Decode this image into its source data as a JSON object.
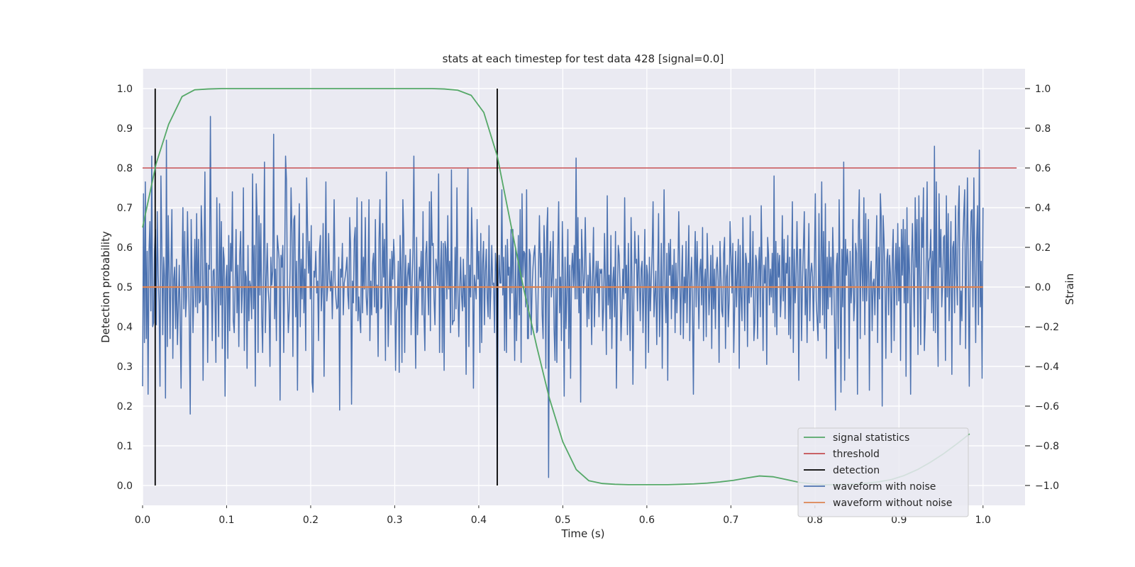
{
  "chart_data": {
    "type": "line",
    "title": "stats at each timestep for test data 428 [signal=0.0]",
    "xlabel": "Time (s)",
    "ylabel_left": "Detection probability",
    "ylabel_right": "Strain",
    "xlim": [
      0.0,
      1.05
    ],
    "ylim_left": [
      -0.05,
      1.05
    ],
    "ylim_right": [
      -1.1,
      1.1
    ],
    "x_ticks": [
      "0.0",
      "0.1",
      "0.2",
      "0.3",
      "0.4",
      "0.5",
      "0.6",
      "0.7",
      "0.8",
      "0.9",
      "1.0"
    ],
    "y_ticks_left": [
      "0.0",
      "0.1",
      "0.2",
      "0.3",
      "0.4",
      "0.5",
      "0.6",
      "0.7",
      "0.8",
      "0.9",
      "1.0"
    ],
    "y_ticks_right": [
      "−1.0",
      "−0.8",
      "−0.6",
      "−0.4",
      "−0.2",
      "0.0",
      "0.2",
      "0.4",
      "0.6",
      "0.8",
      "1.0"
    ],
    "grid": true,
    "legend_position": "lower-right",
    "legend": [
      {
        "label": "signal statistics",
        "color": "#55a868"
      },
      {
        "label": "threshold",
        "color": "#c44e52"
      },
      {
        "label": "detection",
        "color": "#000000"
      },
      {
        "label": "waveform with noise",
        "color": "#4c72b0"
      },
      {
        "label": "waveform without noise",
        "color": "#dd8452"
      }
    ],
    "signal_statistics": {
      "x": [
        0.0,
        0.016,
        0.031,
        0.047,
        0.062,
        0.078,
        0.094,
        0.109,
        0.125,
        0.141,
        0.156,
        0.172,
        0.187,
        0.203,
        0.219,
        0.234,
        0.25,
        0.266,
        0.281,
        0.297,
        0.312,
        0.328,
        0.344,
        0.359,
        0.375,
        0.391,
        0.406,
        0.422,
        0.437,
        0.453,
        0.469,
        0.484,
        0.5,
        0.516,
        0.531,
        0.547,
        0.562,
        0.578,
        0.594,
        0.609,
        0.625,
        0.641,
        0.656,
        0.672,
        0.687,
        0.703,
        0.719,
        0.734,
        0.75,
        0.766,
        0.781,
        0.797,
        0.812,
        0.828,
        0.844,
        0.859,
        0.875,
        0.891,
        0.906,
        0.922,
        0.937,
        0.953,
        0.969,
        0.984
      ],
      "values": [
        0.65,
        0.81,
        0.91,
        0.98,
        0.997,
        0.999,
        1.0,
        1.0,
        1.0,
        1.0,
        1.0,
        1.0,
        1.0,
        1.0,
        1.0,
        1.0,
        1.0,
        1.0,
        1.0,
        1.0,
        1.0,
        1.0,
        1.0,
        0.999,
        0.996,
        0.983,
        0.94,
        0.83,
        0.67,
        0.5,
        0.35,
        0.22,
        0.11,
        0.04,
        0.012,
        0.005,
        0.003,
        0.002,
        0.002,
        0.002,
        0.002,
        0.003,
        0.004,
        0.006,
        0.009,
        0.013,
        0.019,
        0.024,
        0.022,
        0.015,
        0.008,
        0.004,
        0.002,
        0.002,
        0.003,
        0.005,
        0.009,
        0.015,
        0.025,
        0.04,
        0.058,
        0.08,
        0.105,
        0.13
      ]
    },
    "threshold": 0.8,
    "detections_x": [
      0.015,
      0.422
    ],
    "waveform_without_noise": {
      "x": [
        0.0,
        1.0
      ],
      "values": [
        0.0,
        0.0
      ]
    },
    "waveform_with_noise": {
      "x_range": [
        0.0,
        1.0
      ],
      "values": [
        -0.5,
        0.47,
        -0.28,
        0.53,
        -0.26,
        0.18,
        -0.54,
        0.18,
        0.33,
        -0.12,
        0.66,
        -0.2,
        -0.18,
        0.18,
        0.29,
        -0.19,
        0.38,
        0.06,
        -0.08,
        -0.5,
        0.56,
        0.21,
        -0.24,
        0.15,
        0.05,
        -0.56,
        0.74,
        -0.3,
        0.36,
        0.07,
        -0.26,
        0.13,
        0.39,
        -0.36,
        0.04,
        0.1,
        -0.21,
        0.14,
        -0.29,
        -0.1,
        0.11,
        -0.16,
        -0.51,
        0.05,
        0.4,
        -0.11,
        0.28,
        -0.15,
        -0.04,
        0.38,
        0.1,
        -0.19,
        -0.64,
        0.34,
        0.08,
        -0.23,
        0.0,
        0.24,
        -0.1,
        0.37,
        -0.13,
        0.24,
        -0.08,
        -0.07,
        0.41,
        0.24,
        -0.47,
        0.03,
        0.58,
        -0.09,
        0.12,
        -0.38,
        0.11,
        0.09,
        0.86,
        0.06,
        -0.27,
        0.08,
        0.09,
        -0.07,
        -0.38,
        0.45,
        0.03,
        -0.25,
        0.42,
        -0.09,
        0.33,
        -0.31,
        0.2,
        0.14,
        -0.55,
        0.04,
        0.11,
        -0.36,
        0.26,
        -0.22,
        0.22,
        0.08,
        0.48,
        -0.17,
        -0.23,
        0.01,
        0.29,
        -0.13,
        0.11,
        -0.3,
        0.16,
        0.28,
        -0.13,
        -0.01,
        0.5,
        -0.32,
        0.08,
        0.05,
        -0.41,
        0.21,
        -0.17,
        0.03,
        0.0,
        -0.16,
        0.57,
        -0.11,
        0.21,
        -0.5,
        0.52,
        0.35,
        -0.33,
        0.36,
        -0.04,
        0.32,
        -0.15,
        -0.33,
        0.12,
        0.63,
        -0.23,
        0.03,
        0.22,
        -0.01,
        -0.08,
        -0.4,
        0.15,
        0.01,
        0.08,
        0.77,
        -0.16,
        0.09,
        -0.27,
        0.26,
        0.2,
        0.14,
        -0.57,
        0.16,
        0.1,
        0.21,
        -0.33,
        0.08,
        0.66,
        0.54,
        -0.01,
        -0.23,
        -0.12,
        0.09,
        0.5,
        0.27,
        -0.35,
        0.34,
        0.36,
        -0.15,
        0.13,
        -0.52,
        0.11,
        0.42,
        -0.2,
        0.14,
        -0.06,
        0.27,
        -0.13,
        0.09,
        -0.32,
        0.55,
        0.3,
        0.07,
        0.23,
        -0.06,
        0.31,
        -0.48,
        -0.53,
        0.08,
        0.05,
        0.18,
        -0.03,
        0.03,
        -0.27,
        0.19,
        0.26,
        -0.12,
        0.0,
        0.32,
        -0.45,
        0.02,
        0.53,
        -0.07,
        0.0,
        0.27,
        0.04,
        -0.02,
        0.08,
        -0.16,
        0.06,
        0.44,
        0.03,
        -0.06,
        -0.11,
        -0.1,
        0.15,
        -0.62,
        0.09,
        0.05,
        0.22,
        -0.14,
        0.02,
        0.05,
        0.09,
        0.15,
        -0.04,
        -0.11,
        0.35,
        0.2,
        -0.59,
        0.03,
        -0.08,
        0.24,
        0.3,
        -0.12,
        0.45,
        -0.17,
        -0.05,
        -0.15,
        -0.23,
        0.43,
        -0.13,
        0.15,
        -0.01,
        0.35,
        -0.05,
        -0.14,
        0.01,
        0.44,
        -0.27,
        0.03,
        -0.14,
        0.12,
        0.17,
        -0.1,
        0.34,
        -0.13,
        0.01,
        -0.35,
        0.24,
        0.44,
        -0.11,
        -0.1,
        0.32,
        0.05,
        0.24,
        -0.37,
        0.58,
        0.07,
        -0.3,
        -0.03,
        0.14,
        -0.19,
        0.18,
        0.04,
        0.24,
        0.11,
        -0.42,
        -0.13,
        -0.09,
        0.13,
        -0.43,
        0.26,
        0.08,
        -0.38,
        0.44,
        0.25,
        -0.33,
        0.16,
        -0.09,
        0.05,
        0.12,
        0.01,
        0.19,
        -0.24,
        0.01,
        0.18,
        0.66,
        -0.04,
        -0.41,
        0.25,
        -0.24,
        -0.03,
        0.1,
        0.03,
        0.18,
        -0.14,
        0.38,
        -0.14,
        -0.32,
        0.17,
        0.23,
        0.02,
        -0.14,
        0.43,
        -0.22,
        0.48,
        0.21,
        0.22,
        -0.06,
        -0.19,
        0.14,
        0.1,
        0.01,
        0.57,
        -0.33,
        0.08,
        0.23,
        -0.33,
        0.22,
        -0.42,
        0.23,
        0.19,
        -0.06,
        0.36,
        -0.01,
        0.13,
        -0.23,
        0.59,
        -0.19,
        -0.17,
        -0.17,
        0.2,
        -0.11,
        0.5,
        -0.01,
        -0.25,
        -0.02,
        0.15,
        -0.04,
        -0.12,
        0.14,
        -0.1,
        0.06,
        -0.44,
        0.16,
        0.6,
        -0.3,
        0.11,
        -0.05,
        0.4,
        0.19,
        -0.51,
        0.06,
        0.01,
        -0.06,
        0.34,
        0.04,
        0.18,
        -0.33,
        0.27,
        -0.28,
        0.12,
        0.23,
        -0.19,
        0.08,
        0.19,
        -0.05,
        -0.15,
        0.31,
        -0.16,
        -0.01,
        0.21,
        0.01,
        0.02,
        -0.23,
        0.17,
        0.08,
        -0.87,
        -0.01,
        0.16,
        0.02,
        0.02,
        0.49,
        -0.04,
        0.15,
        -0.32,
        0.21,
        -0.33,
        0.24,
        0.06,
        0.1,
        -0.16,
        0.29,
        -0.03,
        0.29,
        0.02,
        -0.37,
        0.2,
        -0.27,
        -0.03,
        0.26,
        -0.14,
        0.39,
        -0.38,
        0.47,
        0.05,
        0.18,
        0.17,
        -0.1,
        0.49,
        -0.26,
        -0.26,
        0.19,
        0.16,
        -0.24,
        -0.01,
        0.1,
        0.17,
        0.21,
        -0.01,
        -0.23,
        -0.22,
        0.1,
        0.36,
        0.05,
        0.17,
        -0.14,
        -0.26,
        0.31,
        0.15,
        -0.41,
        0.28,
        0.4,
        -0.96,
        0.12,
        0.23,
        -0.05,
        0.05,
        0.28,
        -0.21,
        -0.37,
        0.04,
        -0.38,
        0.16,
        0.43,
        -0.13,
        0.05,
        -0.27,
        0.33,
        0.05,
        -0.55,
        0.15,
        -0.21,
        -0.01,
        0.29,
        -0.31,
        0.11,
        -0.46,
        0.08,
        0.17,
        0.0,
        0.21,
        -0.06,
        0.65,
        -0.06,
        0.35,
        -0.13,
        0.14,
        -0.58,
        0.29,
        0.13,
        -0.03,
        0.04,
        0.35,
        0.07,
        -0.2,
        0.06,
        -0.16,
        0.17,
        0.02,
        -0.29,
        0.06,
        0.3,
        -0.2,
        0.02,
        0.13,
        -0.03,
        0.13,
        -0.15,
        0.09,
        0.07,
        0.09,
        -0.22,
        -0.1,
        0.27,
        0.02,
        -0.34,
        0.46,
        -0.09,
        0.06,
        -0.16,
        0.26,
        -0.31,
        0.02,
        0.1,
        -0.15,
        0.28,
        -0.51,
        -0.07,
        0.21,
        0.16,
        0.0,
        -0.27,
        -0.12,
        0.09,
        -0.06,
        0.45,
        -0.03,
        0.11,
        -0.24,
        0.22,
        -0.08,
        -0.32,
        0.35,
        0.04,
        -0.49,
        -0.06,
        0.28,
        0.12,
        0.14,
        -0.12,
        0.26,
        0.04,
        -0.17,
        0.09,
        0.13,
        -0.23,
        0.0,
        0.29,
        -0.41,
        0.11,
        0.06,
        -0.33,
        0.15,
        -0.12,
        0.03,
        0.18,
        0.43,
        -0.15,
        -0.04,
        0.08,
        -0.29,
        0.05,
        0.37,
        -0.25,
        -0.05,
        0.22,
        -0.41,
        0.07,
        0.49,
        -0.01,
        -0.18,
        0.17,
        -0.47,
        0.22,
        0.06,
        0.24,
        -0.16,
        0.11,
        -0.06,
        0.19,
        -0.23,
        0.12,
        -0.13,
        0.04,
        0.38,
        0.1,
        -0.24,
        0.03,
        0.21,
        -0.26,
        0.05,
        -0.08,
        0.23,
        -0.18,
        0.07,
        0.31,
        -0.27,
        0.02,
        0.15,
        -0.12,
        -0.54,
        0.07,
        0.28,
        -0.1,
        0.23,
        0.02,
        -0.21,
        0.09,
        0.14,
        -0.09,
        0.3,
        -0.27,
        0.03,
        0.09,
        -0.25,
        0.27,
        0.07,
        -0.14,
        0.0,
        0.16,
        -0.31,
        0.21,
        -0.11,
        0.09,
        -0.21,
        0.1,
        0.15,
        0.03,
        -0.38,
        0.23,
        0.06,
        -0.12,
        -0.15,
        0.17,
        0.25,
        -0.31,
        0.05,
        0.11,
        -0.2,
        -0.07,
        0.33,
        0.15,
        -0.03,
        0.22,
        -0.33,
        -0.1,
        0.18,
        -0.1,
        0.07,
        0.24,
        -0.41,
        0.21,
        -0.05,
        -0.17,
        0.35,
        0.02,
        -0.22,
        0.17,
        0.13,
        -0.3,
        0.12,
        -0.08,
        0.36,
        -0.05,
        0.04,
        0.28,
        -0.27,
        -0.18,
        0.16,
        0.13,
        -0.26,
        0.08,
        0.2,
        -0.15,
        0.41,
        0.07,
        -0.32,
        0.11,
        0.02,
        0.15,
        -0.39,
        0.25,
        0.16,
        -0.09,
        0.09,
        -0.05,
        0.17,
        -0.13,
        0.56,
        -0.2,
        0.23,
        -0.24,
        0.17,
        0.05,
        0.16,
        -0.15,
        -0.03,
        0.36,
        -0.07,
        0.24,
        -0.16,
        0.12,
        0.07,
        0.26,
        -0.24,
        0.15,
        -0.26,
        0.06,
        0.43,
        -0.33,
        0.19,
        -0.08,
        0.03,
        0.33,
        0.06,
        -0.47,
        0.19,
        0.19,
        -0.27,
        0.02,
        0.2,
        0.38,
        -0.14,
        0.09,
        -0.28,
        0.07,
        0.32,
        -0.17,
        0.07,
        0.12,
        0.05,
        -0.22,
        0.1,
        0.47,
        -0.07,
        -0.17,
        -0.27,
        0.37,
        -0.18,
        0.06,
        0.53,
        -0.14,
        0.28,
        -0.21,
        0.42,
        -0.36,
        0.15,
        -0.11,
        0.23,
        -0.05,
        0.15,
        -0.14,
        0.3,
        0.1,
        -0.2,
        -0.62,
        0.11,
        0.17,
        -0.31,
        0.44,
        0.05,
        -0.53,
        0.19,
        -0.1,
        0.63,
        -0.47,
        0.24,
        0.06,
        0.19,
        0.1,
        -0.36,
        0.18,
        -0.08,
        0.01,
        0.34,
        -0.17,
        -0.07,
        0.22,
        0.17,
        -0.54,
        0.29,
        0.49,
        -0.26,
        0.24,
        0.1,
        -0.07,
        0.45,
        -0.24,
        0.37,
        -0.07,
        0.07,
        0.34,
        -0.52,
        0.07,
        0.13,
        -0.22,
        0.02,
        0.04,
        -0.14,
        0.09,
        0.36,
        -0.28,
        0.2,
        -0.06,
        0.47,
        0.34,
        -0.6,
        0.36,
        0.24,
        0.02,
        -0.36,
        0.13,
        0.19,
        -0.14,
        0.16,
        0.06,
        -0.33,
        0.15,
        0.29,
        -0.27,
        0.06,
        0.22,
        -0.09,
        0.32,
        -0.07,
        0.2,
        -0.37,
        0.29,
        0.06,
        0.34,
        -0.08,
        0.29,
        -0.45,
        0.4,
        -0.08,
        0.21,
        0.06,
        -0.54,
        0.12,
        0.32,
        0.06,
        -0.2,
        0.45,
        0.1,
        0.34,
        -0.34,
        0.46,
        0.06,
        -0.29,
        0.35,
        0.2,
        0.5,
        -0.32,
        -0.14,
        0.13,
        0.53,
        -0.06,
        0.13,
        0.15,
        0.29,
        -0.13,
        0.18,
        -0.22,
        0.71,
        -0.23,
        0.53,
        -0.09,
        -0.4,
        0.47,
        0.1,
        0.29,
        -0.1,
        0.03,
        0.25,
        0.26,
        -0.37,
        0.46,
        -0.05,
        0.37,
        -0.17,
        0.07,
        0.33,
        -0.44,
        0.2,
        0.23,
        -0.13,
        0.41,
        0.07,
        -0.09,
        0.37,
        0.51,
        -0.29,
        -0.02,
        -0.17,
        0.22,
        0.37,
        0.49,
        -0.31,
        0.19,
        0.55,
        0.03,
        -0.5,
        0.12,
        0.38,
        0.39,
        -0.1,
        0.55,
        0.11,
        -0.28,
        0.23,
        0.41,
        -0.19,
        0.69,
        -0.1,
        0.13,
        -0.46,
        0.4
      ]
    }
  }
}
